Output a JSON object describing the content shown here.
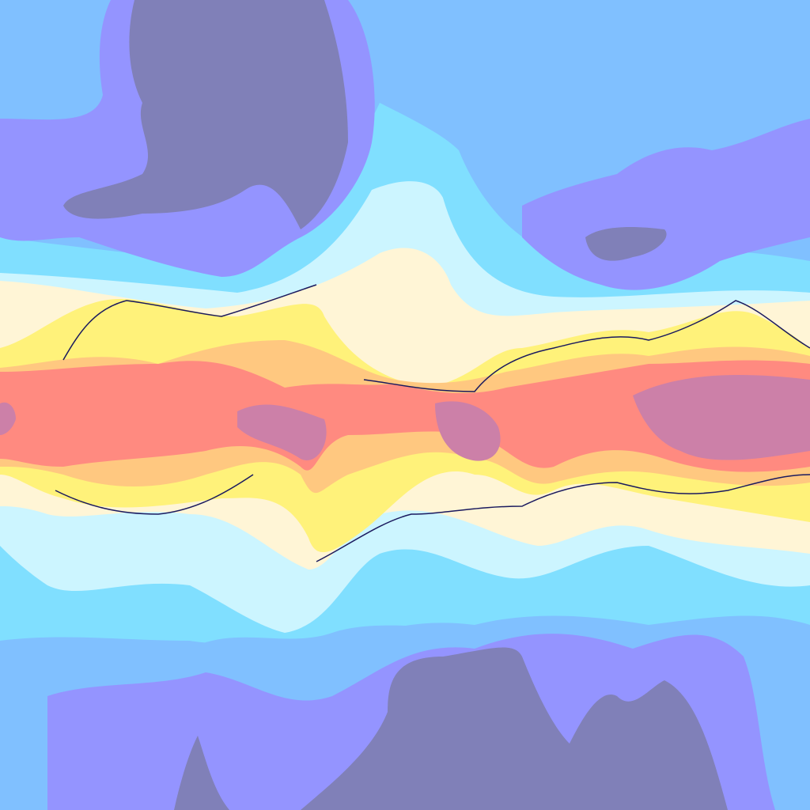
{
  "map": {
    "type": "filled-contour field",
    "legend": "none",
    "palette": {
      "deep_cold": "#8080b8",
      "cold": "#9494ff",
      "cool": "#80c0ff",
      "mild_cool": "#80dfff",
      "pale": "#ccf5ff",
      "cream": "#fff5d6",
      "warm": "#fff27a",
      "hot": "#ffc880",
      "very_hot": "#ff8a80",
      "extreme": "#cc80a8",
      "front_line": "#1a1a5e"
    }
  }
}
